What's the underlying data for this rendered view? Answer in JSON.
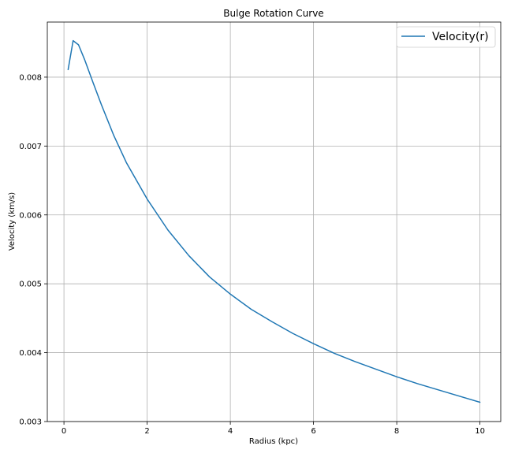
{
  "chart_data": {
    "type": "line",
    "title": "Bulge Rotation Curve",
    "xlabel": "Radius (kpc)",
    "ylabel": "Velocity (km/s)",
    "xlim": [
      -0.4,
      10.5
    ],
    "ylim": [
      0.003,
      0.0088
    ],
    "xticks": [
      0,
      2,
      4,
      6,
      8,
      10
    ],
    "xtick_labels": [
      "0",
      "2",
      "4",
      "6",
      "8",
      "10"
    ],
    "yticks": [
      0.003,
      0.004,
      0.005,
      0.006,
      0.007,
      0.008
    ],
    "ytick_labels": [
      "0.003",
      "0.004",
      "0.005",
      "0.006",
      "0.007",
      "0.008"
    ],
    "grid": true,
    "legend_position": "top-right",
    "series": [
      {
        "name": "Velocity(r)",
        "color": "#1f77b4",
        "x": [
          0.1,
          0.22,
          0.35,
          0.5,
          0.7,
          0.9,
          1.2,
          1.5,
          2.0,
          2.5,
          3.0,
          3.5,
          4.0,
          4.5,
          5.0,
          5.5,
          6.0,
          6.5,
          7.0,
          7.5,
          8.0,
          8.5,
          9.0,
          9.5,
          10.0
        ],
        "y": [
          0.00811,
          0.00853,
          0.00847,
          0.00825,
          0.00792,
          0.0076,
          0.00715,
          0.00676,
          0.00623,
          0.00578,
          0.00541,
          0.0051,
          0.00485,
          0.00463,
          0.00445,
          0.00428,
          0.00413,
          0.00399,
          0.00387,
          0.00376,
          0.00365,
          0.00355,
          0.00346,
          0.00337,
          0.00328
        ]
      }
    ]
  }
}
